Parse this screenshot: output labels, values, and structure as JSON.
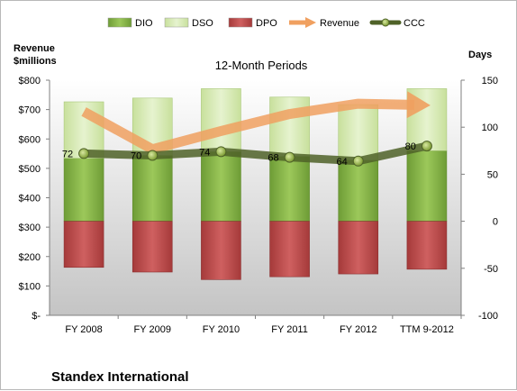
{
  "chart_data": {
    "type": "bar",
    "title": "12-Month Periods",
    "company": "Standex International",
    "categories": [
      "FY 2008",
      "FY 2009",
      "FY 2010",
      "FY 2011",
      "FY 2012",
      "TTM 9-2012"
    ],
    "left_axis": {
      "title_line1": "Revenue",
      "title_line2": "$millions",
      "range": [
        0,
        800
      ],
      "ticks": [
        0,
        100,
        200,
        300,
        400,
        500,
        600,
        700,
        800
      ],
      "tick_labels": [
        "$-",
        "$100",
        "$200",
        "$300",
        "$400",
        "$500",
        "$600",
        "$700",
        "$800"
      ]
    },
    "right_axis": {
      "title": "Days",
      "range": [
        -100,
        150
      ],
      "ticks": [
        -100,
        -50,
        0,
        50,
        100,
        150
      ],
      "tick_labels": [
        "-100",
        "-50",
        "0",
        "50",
        "100",
        "150"
      ]
    },
    "series": [
      {
        "name": "DIO",
        "axis": "right",
        "kind": "bar-stack-positive",
        "values": [
          67,
          70,
          74,
          69,
          65,
          75
        ],
        "color": "#8cb84c"
      },
      {
        "name": "DSO",
        "axis": "right",
        "kind": "bar-stack-positive",
        "values": [
          60,
          61,
          67,
          63,
          59,
          66
        ],
        "color": "#d7eab4"
      },
      {
        "name": "DPO",
        "axis": "right",
        "kind": "bar-negative",
        "values": [
          -49,
          -54,
          -62,
          -59,
          -56,
          -51
        ],
        "color": "#b84a4a"
      },
      {
        "name": "Revenue",
        "axis": "left",
        "kind": "arrow-line",
        "values": [
          693,
          565,
          627,
          685,
          720,
          715
        ],
        "color": "#f0a060"
      },
      {
        "name": "CCC",
        "axis": "right",
        "kind": "line-markers",
        "values": [
          72,
          70,
          74,
          68,
          64,
          80
        ],
        "labels": [
          "72",
          "70",
          "74",
          "68",
          "64",
          "80"
        ],
        "color": "#4f6228"
      }
    ],
    "legend": {
      "position": "top",
      "items": [
        "DIO",
        "DSO",
        "DPO",
        "Revenue",
        "CCC"
      ]
    },
    "grid": false
  }
}
